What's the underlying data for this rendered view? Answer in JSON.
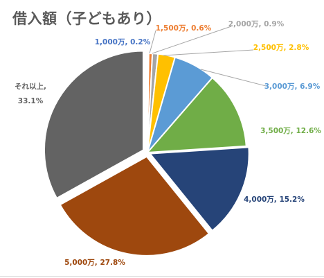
{
  "chart_data": {
    "type": "pie",
    "title": "借入額（子どもあり）",
    "legend": "none",
    "slices": [
      {
        "label": "1,000万",
        "value": 0.2,
        "display": "0.2%",
        "color": "#4472c4"
      },
      {
        "label": "1,500万",
        "value": 0.6,
        "display": "0.6%",
        "color": "#ed7d31"
      },
      {
        "label": "2,000万",
        "value": 0.9,
        "display": "0.9%",
        "color": "#a5a5a5"
      },
      {
        "label": "2,500万",
        "value": 2.8,
        "display": "2.8%",
        "color": "#ffc000"
      },
      {
        "label": "3,000万",
        "value": 6.9,
        "display": "6.9%",
        "color": "#5b9bd5"
      },
      {
        "label": "3,500万",
        "value": 12.6,
        "display": "12.6%",
        "color": "#70ad47"
      },
      {
        "label": "4,000万",
        "value": 15.2,
        "display": "15.2%",
        "color": "#264478"
      },
      {
        "label": "5,000万",
        "value": 27.8,
        "display": "27.8%",
        "color": "#9e480e"
      },
      {
        "label": "それ以上",
        "value": 33.1,
        "display": "33.1%",
        "color": "#636363"
      }
    ]
  }
}
